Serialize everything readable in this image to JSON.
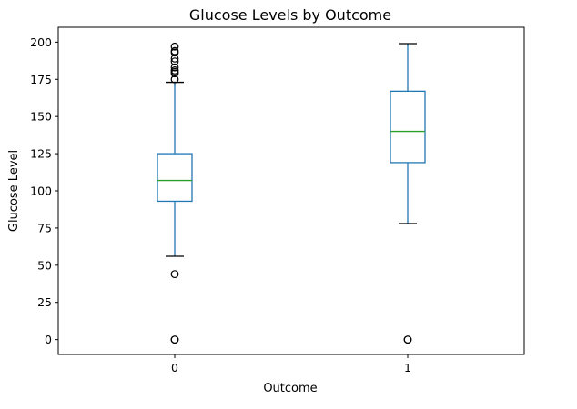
{
  "chart_data": {
    "type": "boxplot",
    "title": "Glucose Levels by Outcome",
    "xlabel": "Outcome",
    "ylabel": "Glucose Level",
    "categories": [
      "0",
      "1"
    ],
    "ylim": [
      -10,
      210
    ],
    "yticks": [
      0,
      25,
      50,
      75,
      100,
      125,
      150,
      175,
      200
    ],
    "grid": false,
    "colors": {
      "box": "#1f77b4",
      "median": "#2ca02c",
      "whisker_cap": "#000000",
      "outlier": "#000000"
    },
    "boxes": [
      {
        "category": "0",
        "q1": 93,
        "median": 107,
        "q3": 125,
        "whisker_low": 56,
        "whisker_high": 173,
        "outliers": [
          0,
          0,
          44,
          175,
          179,
          180,
          181,
          183,
          187,
          189,
          193,
          194,
          197
        ]
      },
      {
        "category": "1",
        "q1": 119,
        "median": 140,
        "q3": 167,
        "whisker_low": 78,
        "whisker_high": 199,
        "outliers": [
          0,
          0
        ]
      }
    ]
  }
}
